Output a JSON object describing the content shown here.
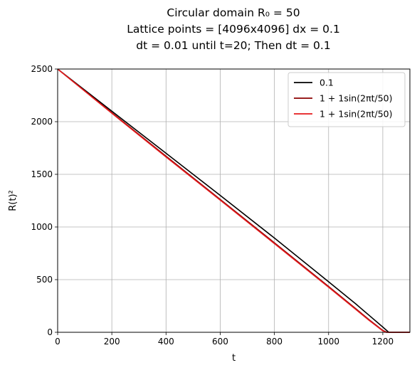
{
  "chart_data": {
    "type": "line",
    "title_lines": [
      "Circular domain R₀ = 50",
      "Lattice points = [4096x4096] dx = 0.1",
      "dt = 0.01 until t=20; Then dt = 0.1"
    ],
    "xlabel": "t",
    "ylabel": "R(t)²",
    "xlim": [
      0,
      1300
    ],
    "ylim": [
      0,
      2500
    ],
    "xticks": [
      0,
      200,
      400,
      600,
      800,
      1000,
      1200
    ],
    "yticks": [
      0,
      500,
      1000,
      1500,
      2000,
      2500
    ],
    "grid": true,
    "legend_position": "upper right",
    "series": [
      {
        "name": "0.1",
        "color": "#000000",
        "x": [
          0,
          200,
          400,
          600,
          800,
          1000,
          1100,
          1150,
          1200,
          1222,
          1300
        ],
        "y": [
          2500,
          2100,
          1700,
          1300,
          895,
          480,
          270,
          160,
          50,
          0,
          0
        ]
      },
      {
        "name": "1 + 1sin(2πt/50)",
        "color": "#8b0000",
        "x": [
          0,
          200,
          400,
          600,
          800,
          1000,
          1100,
          1150,
          1200,
          1215,
          1300
        ],
        "y": [
          2500,
          2085,
          1672,
          1262,
          850,
          435,
          225,
          118,
          18,
          0,
          0
        ]
      },
      {
        "name": "1 + 1sin(2πt/50)",
        "color": "#e41a1c",
        "x": [
          0,
          200,
          400,
          600,
          800,
          1000,
          1100,
          1150,
          1200,
          1213,
          1300
        ],
        "y": [
          2500,
          2080,
          1665,
          1255,
          842,
          428,
          218,
          112,
          14,
          0,
          0
        ]
      }
    ]
  }
}
